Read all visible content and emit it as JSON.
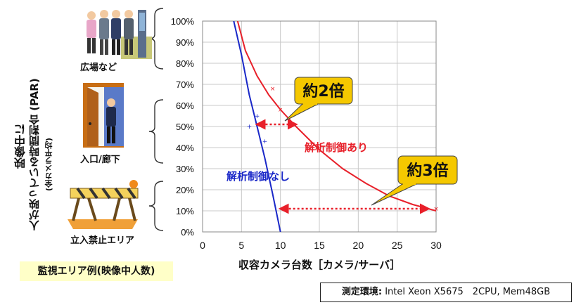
{
  "categories": [
    {
      "label": "広場など",
      "icon": "people-standing-icon"
    },
    {
      "label": "入口/廊下",
      "icon": "doorway-person-icon"
    },
    {
      "label": "立入禁止エリア",
      "icon": "barricade-icon"
    }
  ],
  "example_label": "監視エリア例(映像中人数)",
  "env_label": "測定環境:",
  "env_value": "Intel Xeon X5675　2CPU, Mem48GB",
  "chart_data": {
    "type": "line",
    "xlabel": "収容カメラ台数［カメラ/サーバ］",
    "ylabel": "人が映っている時間割合 (PAR)",
    "ylabel_prefix": "映像中に",
    "ylabel_sub": "(全カメラ平均)",
    "xlim": [
      0,
      30
    ],
    "ylim": [
      0,
      100
    ],
    "x_ticks": [
      0,
      5,
      10,
      15,
      20,
      25,
      30
    ],
    "y_ticks": [
      0,
      10,
      20,
      30,
      40,
      50,
      60,
      70,
      80,
      90,
      100
    ],
    "y_tick_labels": [
      "0%",
      "10%",
      "20%",
      "30%",
      "40%",
      "50%",
      "60%",
      "70%",
      "80%",
      "90%",
      "100%"
    ],
    "grid": true,
    "series": [
      {
        "name": "解析制御あり",
        "color": "#e8202a",
        "x": [
          4.5,
          5.5,
          7,
          8.5,
          10,
          12,
          15,
          18,
          21,
          24,
          27,
          30
        ],
        "y": [
          100,
          86,
          74,
          65,
          58,
          50,
          39,
          30,
          23,
          17,
          13,
          10
        ],
        "markers": [
          {
            "x": 9,
            "y": 68
          },
          {
            "x": 10,
            "y": 58
          },
          {
            "x": 30,
            "y": 11
          }
        ]
      },
      {
        "name": "解析制御なし",
        "color": "#1a28c8",
        "x": [
          4,
          5,
          6,
          7,
          8,
          9,
          10
        ],
        "y": [
          100,
          84,
          65,
          50,
          35,
          18,
          0
        ],
        "markers": [
          {
            "x": 7,
            "y": 55
          },
          {
            "x": 6,
            "y": 50
          },
          {
            "x": 8,
            "y": 43
          }
        ]
      }
    ],
    "annotations": [
      {
        "text": "約2倍",
        "from": [
          7,
          51
        ],
        "to": [
          12,
          51
        ],
        "callout_color": "#f5c800"
      },
      {
        "text": "約3倍",
        "from": [
          10,
          11
        ],
        "to": [
          29,
          11
        ],
        "callout_color": "#f5c800"
      }
    ]
  }
}
